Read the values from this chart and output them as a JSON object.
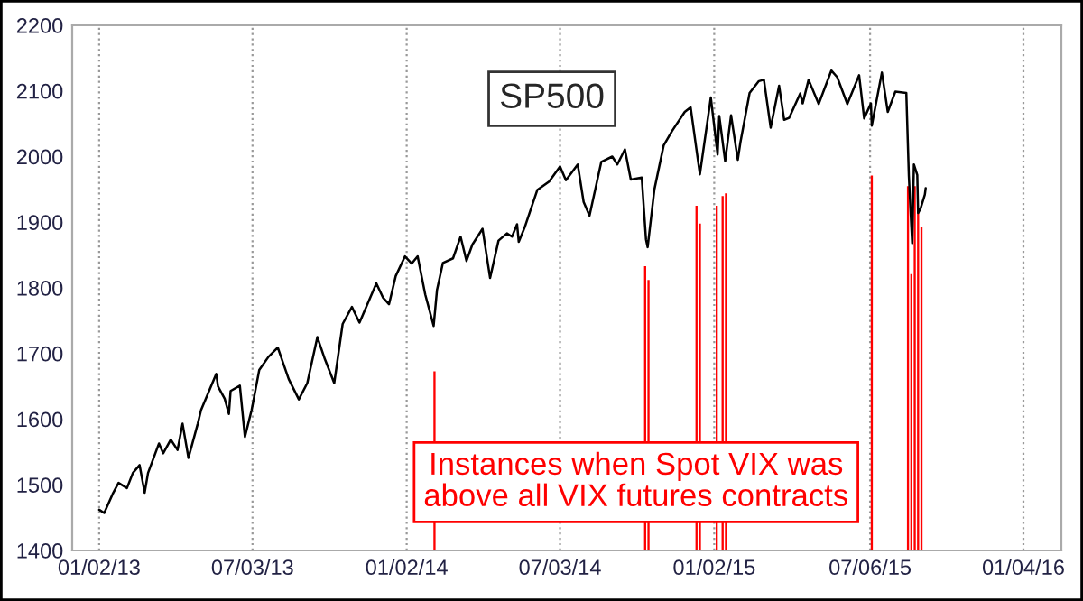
{
  "chart_data": {
    "type": "line",
    "title": "SP500",
    "annotations": [
      "Instances when Spot VIX was\nabove all VIX futures contracts"
    ],
    "xlim": [
      "2012-12-01",
      "2016-02-18"
    ],
    "ylim": [
      1400,
      2200
    ],
    "xticks": [
      {
        "value": "2013-01-02",
        "label": "01/02/13"
      },
      {
        "value": "2013-07-03",
        "label": "07/03/13"
      },
      {
        "value": "2014-01-02",
        "label": "01/02/14"
      },
      {
        "value": "2014-07-03",
        "label": "07/03/14"
      },
      {
        "value": "2015-01-02",
        "label": "01/02/15"
      },
      {
        "value": "2015-07-06",
        "label": "07/06/15"
      },
      {
        "value": "2016-01-04",
        "label": "01/04/16"
      }
    ],
    "yticks": [
      1400,
      1500,
      1600,
      1700,
      1800,
      1900,
      2000,
      2100,
      2200
    ],
    "grid": "x",
    "legend": false,
    "series": [
      {
        "color": "#000000",
        "x": [
          "2013-01-02",
          "2013-01-08",
          "2013-01-18",
          "2013-01-25",
          "2013-02-04",
          "2013-02-11",
          "2013-02-19",
          "2013-02-25",
          "2013-03-01",
          "2013-03-14",
          "2013-03-19",
          "2013-03-28",
          "2013-04-05",
          "2013-04-11",
          "2013-04-18",
          "2013-04-29",
          "2013-05-03",
          "2013-05-21",
          "2013-05-23",
          "2013-05-31",
          "2013-06-05",
          "2013-06-07",
          "2013-06-18",
          "2013-06-24",
          "2013-07-02",
          "2013-07-11",
          "2013-07-22",
          "2013-08-02",
          "2013-08-15",
          "2013-08-27",
          "2013-09-06",
          "2013-09-18",
          "2013-09-27",
          "2013-10-08",
          "2013-10-18",
          "2013-10-29",
          "2013-11-07",
          "2013-11-27",
          "2013-12-05",
          "2013-12-12",
          "2013-12-20",
          "2013-12-31",
          "2014-01-08",
          "2014-01-15",
          "2014-01-24",
          "2014-02-03",
          "2014-02-07",
          "2014-02-14",
          "2014-02-26",
          "2014-03-07",
          "2014-03-14",
          "2014-03-21",
          "2014-04-02",
          "2014-04-11",
          "2014-04-21",
          "2014-05-01",
          "2014-05-07",
          "2014-05-13",
          "2014-05-15",
          "2014-05-22",
          "2014-06-06",
          "2014-06-20",
          "2014-07-03",
          "2014-07-10",
          "2014-07-24",
          "2014-07-31",
          "2014-08-07",
          "2014-08-21",
          "2014-09-03",
          "2014-09-09",
          "2014-09-18",
          "2014-09-25",
          "2014-10-08",
          "2014-10-13",
          "2014-10-15",
          "2014-10-23",
          "2014-11-03",
          "2014-11-13",
          "2014-11-28",
          "2014-12-05",
          "2014-12-16",
          "2014-12-29",
          "2015-01-06",
          "2015-01-08",
          "2015-01-15",
          "2015-01-22",
          "2015-01-30",
          "2015-02-02",
          "2015-02-13",
          "2015-02-24",
          "2015-03-02",
          "2015-03-10",
          "2015-03-20",
          "2015-03-26",
          "2015-04-01",
          "2015-04-14",
          "2015-04-17",
          "2015-04-24",
          "2015-05-06",
          "2015-05-21",
          "2015-05-28",
          "2015-06-09",
          "2015-06-23",
          "2015-06-29",
          "2015-07-07",
          "2015-07-08",
          "2015-07-20",
          "2015-07-27",
          "2015-08-05",
          "2015-08-18",
          "2015-08-21",
          "2015-08-24",
          "2015-08-25",
          "2015-08-27",
          "2015-08-31",
          "2015-09-01",
          "2015-09-04",
          "2015-09-09",
          "2015-09-10"
        ],
        "values": [
          1462,
          1457,
          1486,
          1503,
          1495,
          1518,
          1530,
          1488,
          1518,
          1563,
          1548,
          1569,
          1553,
          1593,
          1541,
          1593,
          1614,
          1669,
          1650,
          1631,
          1608,
          1643,
          1651,
          1573,
          1614,
          1675,
          1695,
          1709,
          1661,
          1630,
          1655,
          1725,
          1691,
          1655,
          1745,
          1771,
          1747,
          1807,
          1785,
          1775,
          1818,
          1848,
          1837,
          1848,
          1790,
          1742,
          1797,
          1838,
          1845,
          1878,
          1841,
          1866,
          1890,
          1815,
          1872,
          1883,
          1878,
          1897,
          1870,
          1892,
          1949,
          1962,
          1985,
          1964,
          1988,
          1931,
          1910,
          1992,
          2000,
          1988,
          2011,
          1965,
          1968,
          1874,
          1862,
          1950,
          2017,
          2039,
          2068,
          2075,
          1973,
          2090,
          2003,
          2062,
          1993,
          2063,
          1995,
          2021,
          2097,
          2115,
          2117,
          2044,
          2108,
          2056,
          2059,
          2096,
          2081,
          2117,
          2080,
          2131,
          2121,
          2080,
          2124,
          2058,
          2081,
          2047,
          2128,
          2068,
          2099,
          2097,
          1971,
          1893,
          1868,
          1988,
          1972,
          1914,
          1921,
          1942,
          1952
        ]
      },
      {
        "type": "bar",
        "color": "#ff0000",
        "x": [
          "2014-02-04",
          "2014-10-12",
          "2014-10-16",
          "2014-12-12",
          "2014-12-16",
          "2015-01-05",
          "2015-01-12",
          "2015-01-16",
          "2015-07-08",
          "2015-08-20",
          "2015-08-24",
          "2015-08-28",
          "2015-09-01",
          "2015-09-05"
        ],
        "values": [
          1673,
          1833,
          1812,
          1925,
          1898,
          1925,
          1940,
          1944,
          1971,
          1955,
          1821,
          1955,
          1914,
          1892
        ]
      }
    ]
  }
}
